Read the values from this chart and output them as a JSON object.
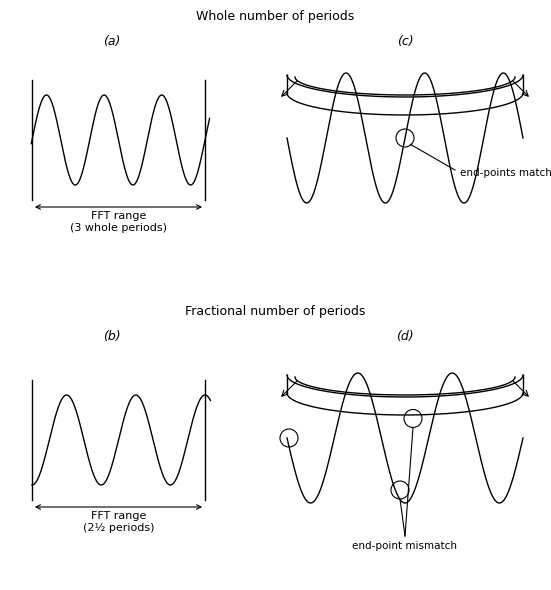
{
  "title_top": "Whole number of periods",
  "title_bottom": "Fractional number of periods",
  "label_a": "(a)",
  "label_b": "(b)",
  "label_c": "(c)",
  "label_d": "(d)",
  "fft_label_a": "FFT range\n(3 whole periods)",
  "fft_label_b": "FFT range\n(2½ periods)",
  "match_label": "end-points match",
  "mismatch_label": "end-point mismatch",
  "bg_color": "#ffffff",
  "line_color": "#000000"
}
